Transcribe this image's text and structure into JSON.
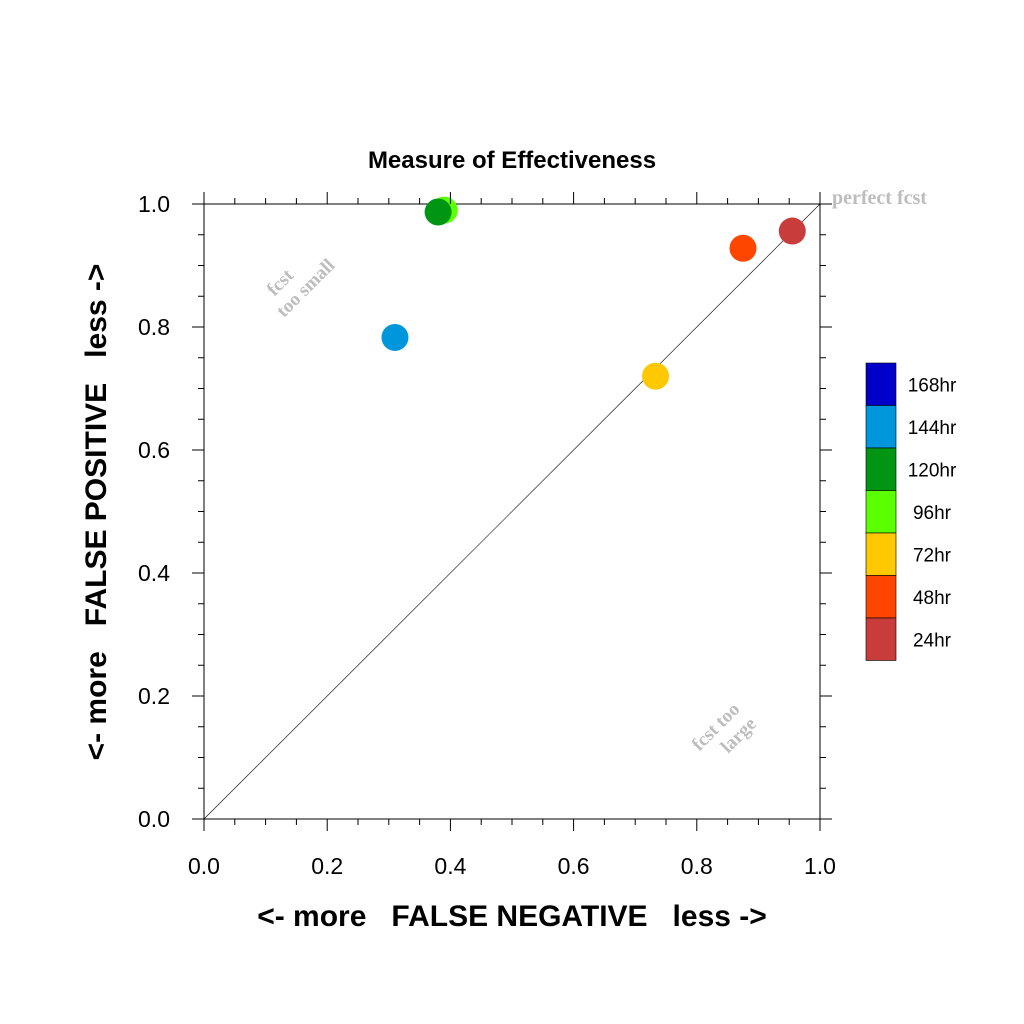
{
  "chart_data": {
    "type": "scatter",
    "title": "Measure of Effectiveness",
    "xlabel": "<- more   FALSE NEGATIVE   less ->",
    "ylabel": "<- more   FALSE POSITIVE   less ->",
    "xlim": [
      0.0,
      1.0
    ],
    "ylim": [
      0.0,
      1.0
    ],
    "x_ticks": [
      "0.0",
      "0.2",
      "0.4",
      "0.6",
      "0.8",
      "1.0"
    ],
    "y_ticks": [
      "0.0",
      "0.2",
      "0.4",
      "0.6",
      "0.8",
      "1.0"
    ],
    "grid": false,
    "diagonal_line": true,
    "annotations": {
      "perfect": "perfect fcst",
      "too_small": [
        "fcst",
        "too small"
      ],
      "too_large": [
        "fcst too",
        "large"
      ]
    },
    "legend_position": "right",
    "legend": [
      {
        "label": "168hr",
        "color": "#0000c8"
      },
      {
        "label": "144hr",
        "color": "#0096dc"
      },
      {
        "label": "120hr",
        "color": "#009614"
      },
      {
        "label": "96hr",
        "color": "#5aff00"
      },
      {
        "label": "72hr",
        "color": "#ffc800"
      },
      {
        "label": "48hr",
        "color": "#ff4600"
      },
      {
        "label": "24hr",
        "color": "#c83c3c"
      }
    ],
    "points": [
      {
        "series": "96hr",
        "x": 0.39,
        "y": 0.99
      },
      {
        "series": "120hr",
        "x": 0.38,
        "y": 0.987
      },
      {
        "series": "144hr",
        "x": 0.31,
        "y": 0.783
      },
      {
        "series": "72hr",
        "x": 0.733,
        "y": 0.72
      },
      {
        "series": "48hr",
        "x": 0.875,
        "y": 0.928
      },
      {
        "series": "24hr",
        "x": 0.955,
        "y": 0.956
      }
    ]
  }
}
